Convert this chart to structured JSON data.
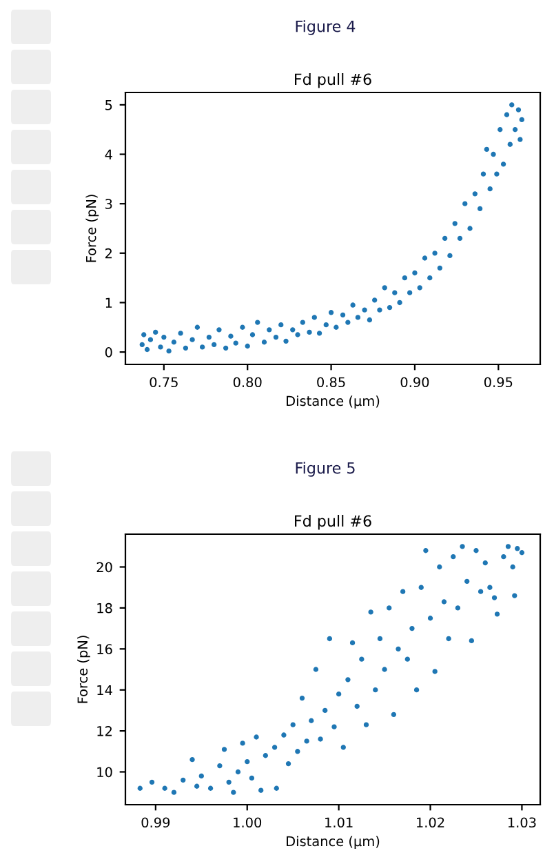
{
  "chart_data": [
    {
      "type": "scatter",
      "title": "Fd pull #6",
      "xlabel": "Distance (µm)",
      "ylabel": "Force (pN)",
      "annotations": [
        "Figure 4"
      ],
      "marker": "circle",
      "xlim": [
        0.727,
        0.975
      ],
      "ylim": [
        -0.25,
        5.25
      ],
      "xticks": [
        0.75,
        {
          "value": 0.8,
          "label": "0.80"
        },
        0.85,
        {
          "value": 0.9,
          "label": "0.90"
        },
        0.95
      ],
      "yticks": [
        0,
        1,
        2,
        3,
        4,
        5
      ],
      "series": [
        {
          "color": "#1f77b4",
          "x": [
            0.737,
            0.738,
            0.74,
            0.742,
            0.745,
            0.748,
            0.75,
            0.753,
            0.756,
            0.76,
            0.763,
            0.767,
            0.77,
            0.773,
            0.777,
            0.78,
            0.783,
            0.787,
            0.79,
            0.793,
            0.797,
            0.8,
            0.803,
            0.806,
            0.81,
            0.813,
            0.817,
            0.82,
            0.823,
            0.827,
            0.83,
            0.833,
            0.837,
            0.84,
            0.843,
            0.847,
            0.85,
            0.853,
            0.857,
            0.86,
            0.863,
            0.866,
            0.87,
            0.873,
            0.876,
            0.879,
            0.882,
            0.885,
            0.888,
            0.891,
            0.894,
            0.897,
            0.9,
            0.903,
            0.906,
            0.909,
            0.912,
            0.915,
            0.918,
            0.921,
            0.924,
            0.927,
            0.93,
            0.933,
            0.936,
            0.939,
            0.941,
            0.943,
            0.945,
            0.947,
            0.949,
            0.951,
            0.953,
            0.955,
            0.957,
            0.958,
            0.96,
            0.962,
            0.963,
            0.964
          ],
          "values": [
            0.15,
            0.35,
            0.05,
            0.25,
            0.4,
            0.1,
            0.3,
            0.02,
            0.2,
            0.38,
            0.08,
            0.25,
            0.5,
            0.1,
            0.3,
            0.15,
            0.45,
            0.08,
            0.32,
            0.18,
            0.5,
            0.12,
            0.35,
            0.6,
            0.2,
            0.45,
            0.3,
            0.55,
            0.22,
            0.45,
            0.35,
            0.6,
            0.4,
            0.7,
            0.38,
            0.55,
            0.8,
            0.5,
            0.75,
            0.6,
            0.95,
            0.7,
            0.85,
            0.65,
            1.05,
            0.85,
            1.3,
            0.9,
            1.2,
            1.0,
            1.5,
            1.2,
            1.6,
            1.3,
            1.9,
            1.5,
            2.0,
            1.7,
            2.3,
            1.95,
            2.6,
            2.3,
            3.0,
            2.5,
            3.2,
            2.9,
            3.6,
            4.1,
            3.3,
            4.0,
            3.6,
            4.5,
            3.8,
            4.8,
            4.2,
            5.0,
            4.5,
            4.9,
            4.3,
            4.7
          ]
        }
      ]
    },
    {
      "type": "scatter",
      "title": "Fd pull #6",
      "xlabel": "Distance (µm)",
      "ylabel": "Force (pN)",
      "annotations": [
        "Figure 5"
      ],
      "marker": "circle",
      "xlim": [
        0.9867,
        1.032
      ],
      "ylim": [
        8.4,
        21.6
      ],
      "xticks": [
        0.99,
        {
          "value": 1.0,
          "label": "1.00"
        },
        1.01,
        1.02,
        1.03
      ],
      "yticks": [
        10,
        12,
        14,
        16,
        18,
        20
      ],
      "series": [
        {
          "color": "#1f77b4",
          "x": [
            0.9883,
            0.9896,
            0.991,
            0.992,
            0.993,
            0.994,
            0.9945,
            0.995,
            0.996,
            0.997,
            0.9975,
            0.998,
            0.9985,
            0.999,
            0.9995,
            1.0,
            1.0005,
            1.001,
            1.0015,
            1.002,
            1.003,
            1.0032,
            1.004,
            1.0045,
            1.005,
            1.0055,
            1.006,
            1.0065,
            1.007,
            1.0075,
            1.008,
            1.0085,
            1.009,
            1.0095,
            1.01,
            1.0105,
            1.011,
            1.0115,
            1.012,
            1.0125,
            1.013,
            1.0135,
            1.014,
            1.0145,
            1.015,
            1.0155,
            1.016,
            1.0165,
            1.017,
            1.0175,
            1.018,
            1.0185,
            1.019,
            1.0195,
            1.02,
            1.0205,
            1.021,
            1.0215,
            1.022,
            1.0225,
            1.023,
            1.0235,
            1.024,
            1.0245,
            1.025,
            1.0255,
            1.026,
            1.0265,
            1.027,
            1.0273,
            1.028,
            1.0285,
            1.029,
            1.0292,
            1.0295,
            1.03
          ],
          "values": [
            9.2,
            9.5,
            9.2,
            9.0,
            9.6,
            10.6,
            9.3,
            9.8,
            9.2,
            10.3,
            11.1,
            9.5,
            9.0,
            10.0,
            11.4,
            10.5,
            9.7,
            11.7,
            9.1,
            10.8,
            11.2,
            9.2,
            11.8,
            10.4,
            12.3,
            11.0,
            13.6,
            11.5,
            12.5,
            15.0,
            11.6,
            13.0,
            16.5,
            12.2,
            13.8,
            11.2,
            14.5,
            16.3,
            13.2,
            15.5,
            12.3,
            17.8,
            14.0,
            16.5,
            15.0,
            18.0,
            12.8,
            16.0,
            18.8,
            15.5,
            17.0,
            14.0,
            19.0,
            20.8,
            17.5,
            14.9,
            20.0,
            18.3,
            16.5,
            20.5,
            18.0,
            21.0,
            19.3,
            16.4,
            20.8,
            18.8,
            20.2,
            19.0,
            18.5,
            17.7,
            20.5,
            21.0,
            20.0,
            18.6,
            20.9,
            20.7
          ]
        }
      ]
    }
  ]
}
